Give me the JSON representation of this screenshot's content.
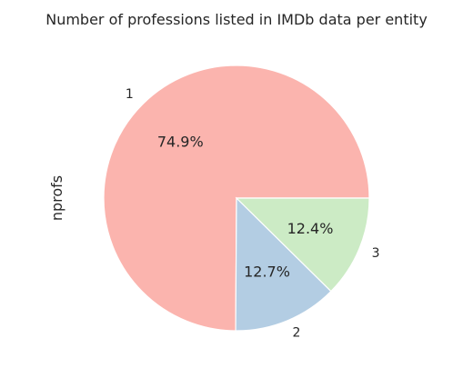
{
  "chart_data": {
    "type": "pie",
    "title": "Number of professions listed in IMDb data per entity",
    "ylabel": "nprofs",
    "slices": [
      {
        "label": "1",
        "value": 74.9,
        "pct_label": "74.9%",
        "color": "#fbb4ae"
      },
      {
        "label": "2",
        "value": 12.7,
        "pct_label": "12.7%",
        "color": "#b3cde3"
      },
      {
        "label": "3",
        "value": 12.4,
        "pct_label": "12.4%",
        "color": "#ccebc5"
      }
    ],
    "start_angle_deg": 0,
    "direction": "counterclockwise",
    "edge_color": "#ffffff"
  }
}
